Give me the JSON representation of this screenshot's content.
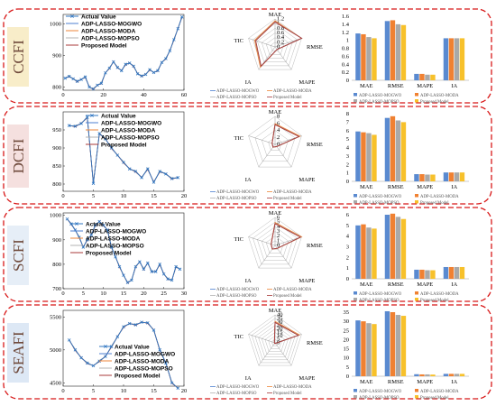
{
  "colors": {
    "frame": "#d81818",
    "actual": "#2f76c2",
    "mogwo": "#4d7fd0",
    "moda": "#ee8638",
    "mopso": "#b3b3b3",
    "proposed": "#a83a3a",
    "bar_mogwo": "#5a8ad0",
    "bar_moda": "#f08132",
    "bar_mopso": "#a9a9a9",
    "bar_proposed": "#f7c12b",
    "tag_bg": [
      "#f8edc9",
      "#f5e0df",
      "#e6eef7",
      "#dde8f5"
    ]
  },
  "legend_labels": {
    "actual": "Actual Value",
    "mogwo": "ADP-LASSO-MOGWO",
    "moda": "ADP-LASSO-MODA",
    "mopso": "ADP-LASSO-MOPSO",
    "proposed": "Proposed Model"
  },
  "radar_axes": [
    "MAE",
    "RMSE",
    "MAPE",
    "IA",
    "TIC"
  ],
  "bar_categories": [
    "MAE",
    "RMSE",
    "MAPE",
    "IA"
  ],
  "panels": [
    {
      "name": "CCFI",
      "line": {
        "xlim": [
          0,
          60
        ],
        "ylim": [
          790,
          1030
        ],
        "xticks": [
          0,
          20,
          40,
          60
        ],
        "yticks": [
          800,
          900,
          1000
        ],
        "x": [
          1,
          3,
          5,
          7,
          9,
          11,
          13,
          15,
          17,
          19,
          21,
          23,
          25,
          27,
          29,
          31,
          33,
          35,
          37,
          39,
          41,
          43,
          45,
          47,
          49,
          51,
          53,
          55,
          57,
          59
        ],
        "actual": [
          828,
          834,
          826,
          818,
          824,
          832,
          800,
          794,
          806,
          812,
          845,
          860,
          880,
          862,
          852,
          872,
          876,
          866,
          842,
          835,
          840,
          855,
          846,
          852,
          878,
          890,
          915,
          950,
          985,
          1022
        ]
      },
      "radar": {
        "ticks": [
          "0",
          "0.2",
          "0.4",
          "0.6",
          "0.8",
          "1",
          "1.2"
        ],
        "max": 1.2,
        "values": [
          1.1,
          1.35,
          0.14,
          1.05,
          0.9
        ]
      },
      "bars": {
        "ylim": [
          0,
          1.6
        ],
        "yticks": [
          "0",
          "0.2",
          "0.4",
          "0.6",
          "0.8",
          "1",
          "1.2",
          "1.4",
          "1.6"
        ],
        "series": [
          [
            1.17,
            1.48,
            0.16,
            1.05
          ],
          [
            1.15,
            1.5,
            0.16,
            1.05
          ],
          [
            1.08,
            1.4,
            0.14,
            1.05
          ],
          [
            1.05,
            1.38,
            0.14,
            1.05
          ]
        ]
      }
    },
    {
      "name": "DCFI",
      "line": {
        "xlim": [
          0,
          20
        ],
        "ylim": [
          780,
          1000
        ],
        "xticks": [
          0,
          5,
          10,
          15,
          20
        ],
        "yticks": [
          800,
          850,
          900,
          950
        ],
        "x": [
          1,
          2,
          3,
          4,
          5,
          6,
          7,
          8,
          9,
          10,
          11,
          12,
          13,
          14,
          15,
          16,
          17,
          18,
          19
        ],
        "actual": [
          962,
          960,
          968,
          985,
          802,
          940,
          925,
          900,
          880,
          860,
          842,
          835,
          818,
          842,
          805,
          835,
          828,
          815,
          818
        ]
      },
      "radar": {
        "ticks": [
          "0",
          "2",
          "4",
          "6",
          "8"
        ],
        "max": 8,
        "values": [
          5.8,
          7.4,
          0.8,
          1.0,
          0.9
        ]
      },
      "bars": {
        "ylim": [
          0,
          8
        ],
        "yticks": [
          "0",
          "1",
          "2",
          "3",
          "4",
          "5",
          "6",
          "7",
          "8"
        ],
        "series": [
          [
            5.9,
            7.5,
            0.85,
            1.05
          ],
          [
            5.8,
            7.7,
            0.85,
            1.05
          ],
          [
            5.7,
            7.2,
            0.8,
            1.05
          ],
          [
            5.5,
            7.0,
            0.8,
            1.05
          ]
        ]
      }
    },
    {
      "name": "SCFI",
      "line": {
        "xlim": [
          0,
          30
        ],
        "ylim": [
          700,
          1010
        ],
        "xticks": [
          0,
          5,
          10,
          15,
          20,
          25,
          30
        ],
        "yticks": [
          700,
          800,
          900,
          1000
        ],
        "x": [
          1,
          2,
          3,
          4,
          5,
          6,
          7,
          8,
          9,
          10,
          11,
          12,
          13,
          14,
          15,
          16,
          17,
          18,
          19,
          20,
          21,
          22,
          23,
          24,
          25,
          26,
          27,
          28,
          29
        ],
        "actual": [
          985,
          965,
          940,
          910,
          870,
          900,
          920,
          960,
          975,
          960,
          940,
          870,
          830,
          790,
          755,
          725,
          735,
          790,
          810,
          780,
          805,
          770,
          770,
          800,
          760,
          740,
          735,
          790,
          780
        ]
      },
      "radar": {
        "ticks": [
          "0",
          "1",
          "2",
          "3",
          "4",
          "5",
          "6"
        ],
        "max": 6,
        "values": [
          4.8,
          5.9,
          0.8,
          1.0,
          0.9
        ]
      },
      "bars": {
        "ylim": [
          0,
          6
        ],
        "yticks": [
          "0",
          "1",
          "2",
          "3",
          "4",
          "5",
          "6"
        ],
        "series": [
          [
            5.0,
            6.0,
            0.85,
            1.1
          ],
          [
            5.1,
            6.1,
            0.85,
            1.1
          ],
          [
            4.8,
            5.8,
            0.8,
            1.1
          ],
          [
            4.7,
            5.6,
            0.8,
            1.1
          ]
        ]
      }
    },
    {
      "name": "SEAFI",
      "line": {
        "xlim": [
          0,
          20
        ],
        "ylim": [
          4450,
          5600
        ],
        "xticks": [
          0,
          5,
          10,
          15,
          20
        ],
        "yticks": [
          4500,
          5000,
          5500
        ],
        "x": [
          1,
          2,
          3,
          4,
          5,
          6,
          7,
          8,
          9,
          10,
          11,
          12,
          13,
          14,
          15,
          16,
          17,
          18,
          19
        ],
        "actual": [
          5150,
          5000,
          4880,
          4800,
          4760,
          4830,
          4900,
          5050,
          5200,
          5350,
          5400,
          5380,
          5420,
          5410,
          5300,
          5000,
          4800,
          4500,
          4420
        ]
      },
      "radar": {
        "ticks": [
          "0",
          "5",
          "10",
          "15",
          "20",
          "25",
          "30",
          "35",
          "40"
        ],
        "max": 40,
        "values": [
          30,
          36,
          1,
          1,
          1
        ]
      },
      "bars": {
        "ylim": [
          0,
          35
        ],
        "yticks": [
          "0",
          "5",
          "10",
          "15",
          "20",
          "25",
          "30",
          "35"
        ],
        "series": [
          [
            30.5,
            35.5,
            1.1,
            1.3
          ],
          [
            30.0,
            35.0,
            1.0,
            1.3
          ],
          [
            29.0,
            33.5,
            1.0,
            1.3
          ],
          [
            28.5,
            33.0,
            0.9,
            1.3
          ]
        ]
      }
    }
  ]
}
